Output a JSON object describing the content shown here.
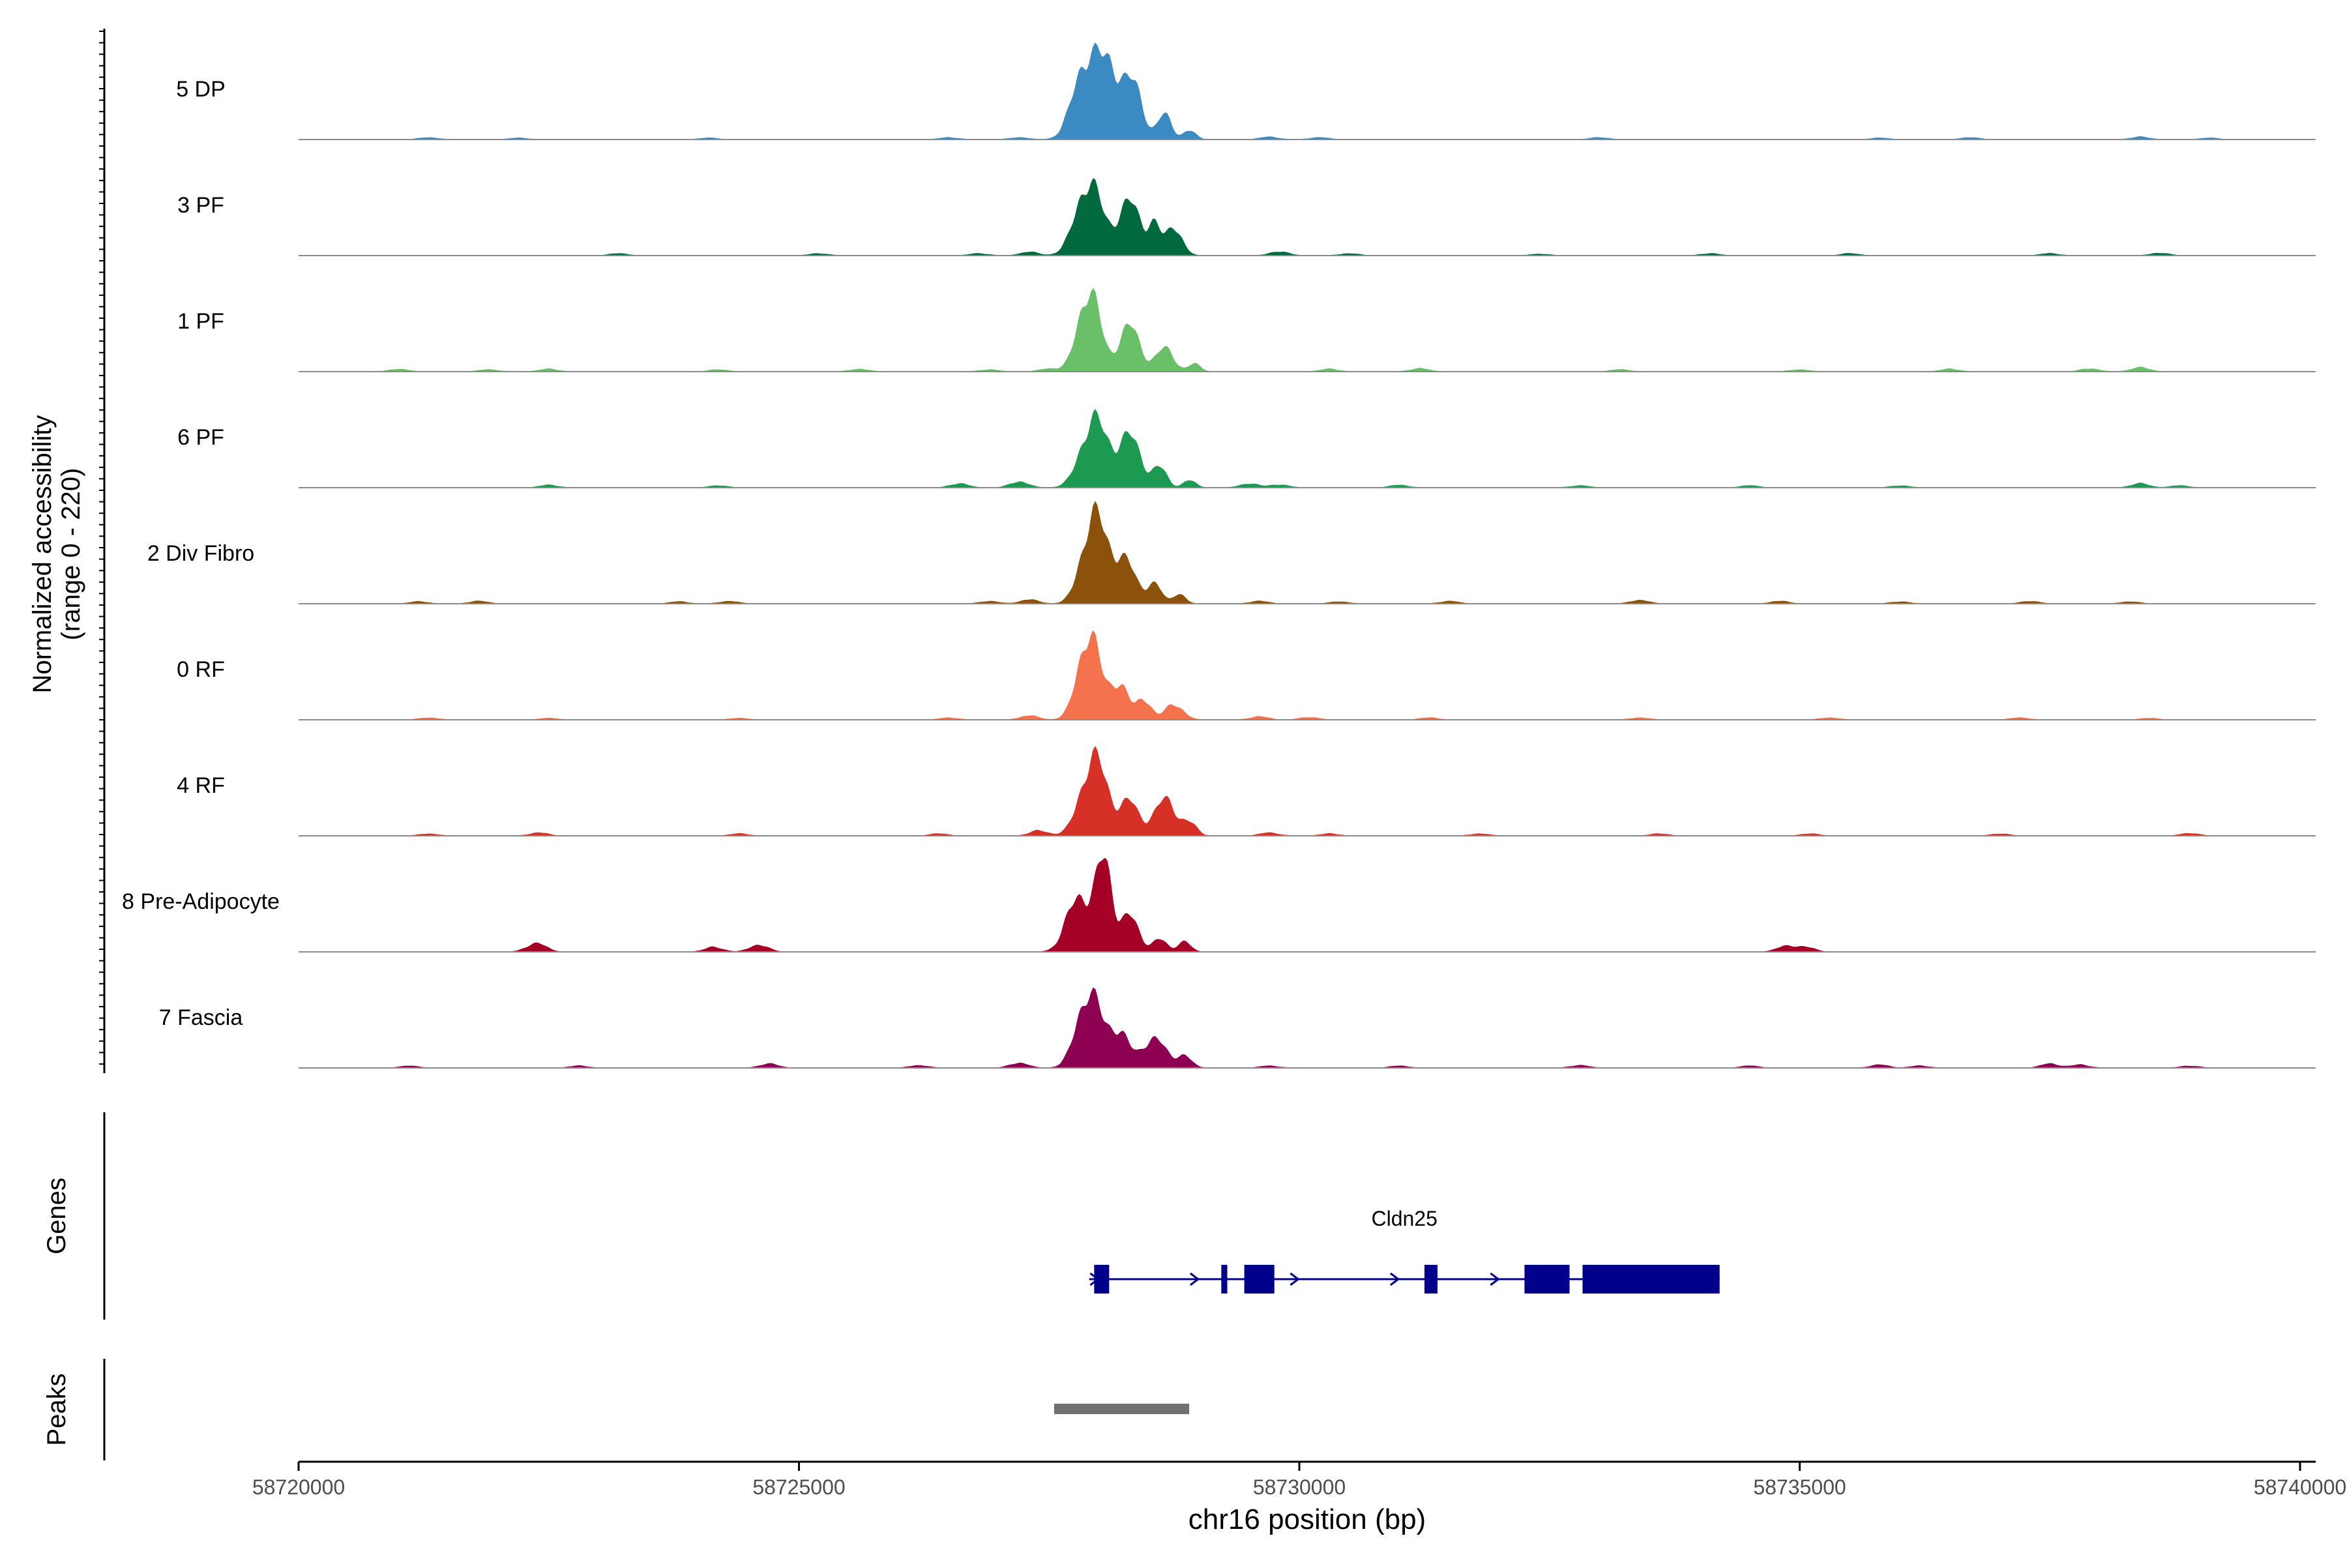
{
  "chart_data": {
    "type": "area",
    "title": "",
    "ylabel_line1": "Normalized accessibility",
    "ylabel_line2": "(range 0 - 220)",
    "ylim": [
      0,
      220
    ],
    "xlabel": "chr16 position (bp)",
    "xlim": [
      58720000,
      58740000
    ],
    "x_ticks": [
      58720000,
      58725000,
      58730000,
      58735000,
      58740000
    ],
    "x_tick_labels": [
      "58720000",
      "58725000",
      "58730000",
      "58735000",
      "58740000"
    ],
    "tracks": [
      {
        "name": "5 DP",
        "color": "#3b8bc2",
        "peaks": [
          [
            58727850,
            135,
            120
          ],
          [
            58728100,
            140,
            130
          ],
          [
            58728350,
            90,
            90
          ],
          [
            58728650,
            48,
            70
          ],
          [
            58728900,
            18,
            60
          ]
        ],
        "noise": [
          [
            58721300,
            4
          ],
          [
            58722200,
            3
          ],
          [
            58724100,
            3
          ],
          [
            58726500,
            4
          ],
          [
            58727200,
            4
          ],
          [
            58729700,
            5
          ],
          [
            58730200,
            4
          ],
          [
            58733000,
            4
          ],
          [
            58735800,
            3
          ],
          [
            58736700,
            4
          ],
          [
            58738400,
            5
          ],
          [
            58739100,
            3
          ]
        ]
      },
      {
        "name": "3 PF",
        "color": "#00693e",
        "peaks": [
          [
            58727900,
            145,
            130
          ],
          [
            58728300,
            105,
            110
          ],
          [
            58728550,
            60,
            60
          ],
          [
            58728750,
            55,
            80
          ]
        ],
        "noise": [
          [
            58723200,
            4
          ],
          [
            58725200,
            4
          ],
          [
            58726800,
            4
          ],
          [
            58727300,
            7
          ],
          [
            58729800,
            8
          ],
          [
            58730500,
            4
          ],
          [
            58732400,
            3
          ],
          [
            58734100,
            4
          ],
          [
            58735500,
            4
          ],
          [
            58737500,
            4
          ],
          [
            58738600,
            5
          ]
        ]
      },
      {
        "name": "1 PF",
        "color": "#6abf69",
        "peaks": [
          [
            58727900,
            160,
            110
          ],
          [
            58728300,
            90,
            100
          ],
          [
            58728650,
            45,
            90
          ],
          [
            58728950,
            15,
            60
          ]
        ],
        "noise": [
          [
            58721000,
            5
          ],
          [
            58721900,
            4
          ],
          [
            58722500,
            5
          ],
          [
            58724200,
            4
          ],
          [
            58725600,
            5
          ],
          [
            58726900,
            4
          ],
          [
            58727500,
            6
          ],
          [
            58730300,
            5
          ],
          [
            58731200,
            6
          ],
          [
            58733200,
            4
          ],
          [
            58735000,
            4
          ],
          [
            58736500,
            5
          ],
          [
            58737900,
            6
          ],
          [
            58738400,
            8
          ]
        ]
      },
      {
        "name": "6 PF",
        "color": "#1d9a52",
        "peaks": [
          [
            58727950,
            135,
            130
          ],
          [
            58728300,
            100,
            110
          ],
          [
            58728600,
            40,
            70
          ],
          [
            58728900,
            15,
            60
          ]
        ],
        "noise": [
          [
            58722500,
            5
          ],
          [
            58724200,
            4
          ],
          [
            58726600,
            8
          ],
          [
            58727200,
            12
          ],
          [
            58729500,
            8
          ],
          [
            58729800,
            6
          ],
          [
            58731000,
            5
          ],
          [
            58732800,
            4
          ],
          [
            58734500,
            4
          ],
          [
            58736000,
            4
          ],
          [
            58738400,
            8
          ],
          [
            58738800,
            4
          ]
        ]
      },
      {
        "name": "2 Div Fibro",
        "color": "#8c510a",
        "peaks": [
          [
            58727950,
            175,
            120
          ],
          [
            58728250,
            85,
            110
          ],
          [
            58728550,
            40,
            70
          ],
          [
            58728800,
            20,
            60
          ]
        ],
        "noise": [
          [
            58721200,
            4
          ],
          [
            58721800,
            5
          ],
          [
            58723800,
            4
          ],
          [
            58724300,
            5
          ],
          [
            58726900,
            5
          ],
          [
            58727300,
            8
          ],
          [
            58729600,
            5
          ],
          [
            58730400,
            4
          ],
          [
            58731500,
            5
          ],
          [
            58733400,
            7
          ],
          [
            58734800,
            5
          ],
          [
            58736000,
            4
          ],
          [
            58737300,
            5
          ],
          [
            58738300,
            4
          ]
        ]
      },
      {
        "name": "0 RF",
        "color": "#f4724c",
        "peaks": [
          [
            58727900,
            170,
            110
          ],
          [
            58728200,
            70,
            90
          ],
          [
            58728450,
            40,
            70
          ],
          [
            58728750,
            30,
            90
          ]
        ],
        "noise": [
          [
            58721300,
            4
          ],
          [
            58722500,
            3
          ],
          [
            58724400,
            3
          ],
          [
            58726500,
            4
          ],
          [
            58727300,
            8
          ],
          [
            58729600,
            6
          ],
          [
            58730100,
            5
          ],
          [
            58731300,
            4
          ],
          [
            58733400,
            4
          ],
          [
            58735300,
            4
          ],
          [
            58737200,
            4
          ],
          [
            58738500,
            3
          ]
        ]
      },
      {
        "name": "4 RF",
        "color": "#d73027",
        "peaks": [
          [
            58727950,
            155,
            130
          ],
          [
            58728300,
            65,
            90
          ],
          [
            58728650,
            70,
            110
          ],
          [
            58728900,
            25,
            70
          ]
        ],
        "noise": [
          [
            58721300,
            4
          ],
          [
            58722400,
            6
          ],
          [
            58724400,
            4
          ],
          [
            58726400,
            4
          ],
          [
            58727400,
            10
          ],
          [
            58729700,
            6
          ],
          [
            58730300,
            4
          ],
          [
            58731800,
            4
          ],
          [
            58733600,
            4
          ],
          [
            58735100,
            4
          ],
          [
            58737000,
            4
          ],
          [
            58738900,
            5
          ]
        ]
      },
      {
        "name": "8 Pre-Adipocyte",
        "color": "#a50026",
        "peaks": [
          [
            58727800,
            110,
            120
          ],
          [
            58728050,
            170,
            80
          ],
          [
            58728300,
            70,
            90
          ],
          [
            58728600,
            25,
            70
          ],
          [
            58728850,
            22,
            60
          ]
        ],
        "noise": [
          [
            58722350,
            9
          ],
          [
            58722400,
            9
          ],
          [
            58724150,
            9
          ],
          [
            58724600,
            14
          ],
          [
            58734850,
            10
          ],
          [
            58735050,
            10
          ]
        ]
      },
      {
        "name": "7 Fascia",
        "color": "#8e0152",
        "peaks": [
          [
            58727900,
            150,
            120
          ],
          [
            58728200,
            70,
            100
          ],
          [
            58728550,
            60,
            110
          ],
          [
            58728850,
            25,
            70
          ]
        ],
        "noise": [
          [
            58721100,
            4
          ],
          [
            58722800,
            4
          ],
          [
            58724700,
            8
          ],
          [
            58726200,
            5
          ],
          [
            58727200,
            10
          ],
          [
            58729700,
            4
          ],
          [
            58731000,
            4
          ],
          [
            58732800,
            5
          ],
          [
            58734500,
            4
          ],
          [
            58735800,
            6
          ],
          [
            58736200,
            4
          ],
          [
            58737500,
            8
          ],
          [
            58737800,
            6
          ],
          [
            58738900,
            4
          ]
        ]
      }
    ],
    "genes_track_label": "Genes",
    "gene": {
      "name": "Cldn25",
      "color": "#00008b",
      "strand": "+",
      "start": 58727900,
      "end": 58734200,
      "exons": [
        [
          58727950,
          58728100
        ],
        [
          58729220,
          58729280
        ],
        [
          58729450,
          58729750
        ],
        [
          58731250,
          58731380
        ],
        [
          58732250,
          58732700
        ],
        [
          58732830,
          58734200
        ]
      ]
    },
    "peaks_track_label": "Peaks",
    "peak_regions": [
      {
        "start": 58727550,
        "end": 58728900,
        "color": "#707070"
      }
    ]
  }
}
